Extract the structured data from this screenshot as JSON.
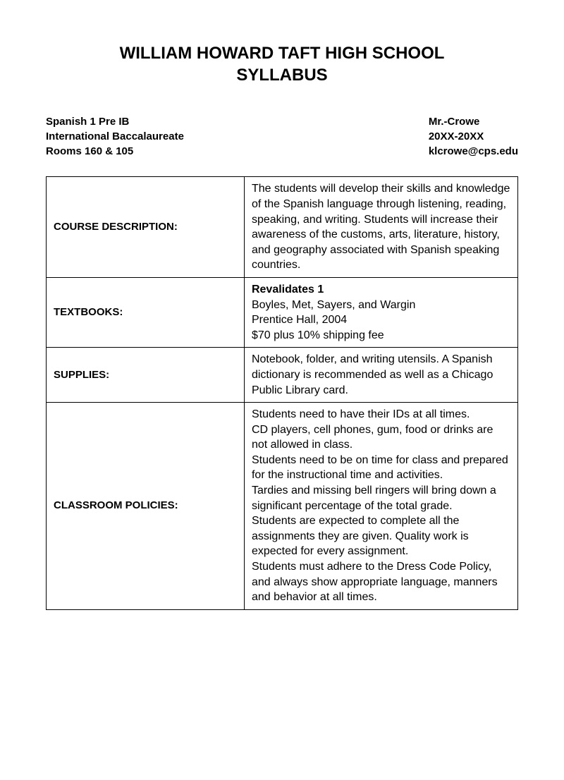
{
  "title_line1": "WILLIAM HOWARD TAFT HIGH SCHOOL",
  "title_line2": "SYLLABUS",
  "header": {
    "left_line1": "Spanish 1 Pre IB",
    "left_line2": "International Baccalaureate",
    "left_line3": "Rooms 160 & 105",
    "right_line1": "Mr.-Crowe",
    "right_line2": "20XX-20XX",
    "right_line3": "klcrowe@cps.edu"
  },
  "rows": {
    "course_description": {
      "label": "COURSE DESCRIPTION:",
      "content": "The students will develop their skills and knowledge of the Spanish language through listening, reading, speaking, and writing.  Students will increase their awareness of the customs, arts, literature, history, and geography associated with Spanish speaking countries."
    },
    "textbooks": {
      "label": "TEXTBOOKS:",
      "title": "Revalidates 1",
      "line2": "Boyles, Met, Sayers, and Wargin",
      "line3": "Prentice Hall, 2004",
      "line4": "$70 plus 10% shipping fee"
    },
    "supplies": {
      "label": "SUPPLIES:",
      "content": "Notebook, folder, and writing utensils. A Spanish dictionary is recommended as well as a Chicago Public Library card."
    },
    "classroom_policies": {
      "label": "CLASSROOM POLICIES:",
      "p1": "Students need to have their IDs at all times.",
      "p2": "CD players, cell phones, gum, food or drinks are not allowed in class.",
      "p3": "Students need to be on time for class and prepared for the instructional time and activities.",
      "p4": "Tardies and missing bell ringers will bring down a significant percentage of the total grade.",
      "p5": "Students are expected to complete all the assignments they are given. Quality work is expected for every assignment.",
      "p6": "Students must adhere to the Dress Code Policy, and always show appropriate language, manners and behavior at all times."
    }
  }
}
